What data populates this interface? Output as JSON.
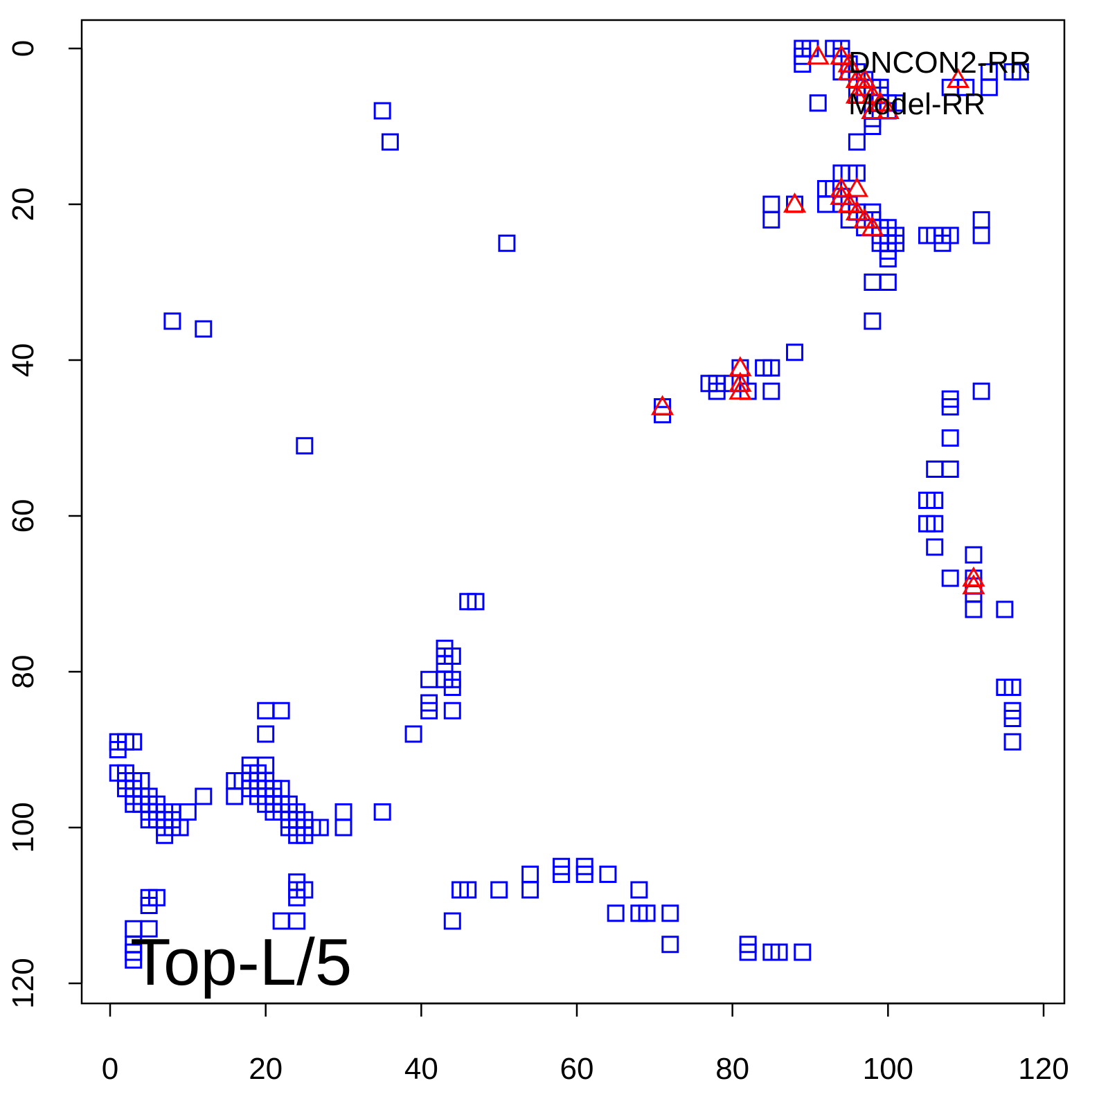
{
  "chart_data": {
    "type": "scatter",
    "title": "",
    "xlabel": "",
    "ylabel": "",
    "xlim": [
      0,
      120
    ],
    "ylim": [
      120,
      0
    ],
    "y_reversed": true,
    "grid": false,
    "x_ticks": [
      "0",
      "20",
      "40",
      "60",
      "80",
      "100",
      "120"
    ],
    "y_ticks": [
      "0",
      "20",
      "40",
      "60",
      "80",
      "100",
      "120"
    ],
    "annotation": "Top-L/5",
    "legend": {
      "placement": "top-right",
      "entries": [
        "DNCON2-RR",
        "Model-RR"
      ]
    },
    "colors": {
      "squares": "#0000FF",
      "triangles": "#FF0000"
    },
    "series": [
      {
        "marker": "square",
        "color": "#0000FF",
        "points": [
          [
            89,
            0
          ],
          [
            90,
            0
          ],
          [
            89,
            1
          ],
          [
            89,
            2
          ],
          [
            93,
            0
          ],
          [
            94,
            0
          ],
          [
            94,
            1
          ],
          [
            95,
            2
          ],
          [
            95,
            3
          ],
          [
            94,
            3
          ],
          [
            96,
            3
          ],
          [
            96,
            4
          ],
          [
            97,
            4
          ],
          [
            97,
            5
          ],
          [
            98,
            5
          ],
          [
            98,
            6
          ],
          [
            99,
            5
          ],
          [
            99,
            6
          ],
          [
            96,
            6
          ],
          [
            97,
            6
          ],
          [
            100,
            7
          ],
          [
            101,
            7
          ],
          [
            100,
            8
          ],
          [
            99,
            8
          ],
          [
            98,
            9
          ],
          [
            98,
            8
          ],
          [
            91,
            7
          ],
          [
            96,
            12
          ],
          [
            98,
            10
          ],
          [
            110,
            5
          ],
          [
            108,
            5
          ],
          [
            113,
            3
          ],
          [
            113,
            5
          ],
          [
            116,
            3
          ],
          [
            117,
            3
          ],
          [
            35,
            8
          ],
          [
            36,
            12
          ],
          [
            51,
            25
          ],
          [
            8,
            35
          ],
          [
            12,
            36
          ],
          [
            25,
            51
          ],
          [
            92,
            18
          ],
          [
            93,
            18
          ],
          [
            94,
            16
          ],
          [
            95,
            16
          ],
          [
            96,
            16
          ],
          [
            92,
            20
          ],
          [
            94,
            19
          ],
          [
            94,
            20
          ],
          [
            95,
            20
          ],
          [
            96,
            21
          ],
          [
            95,
            22
          ],
          [
            97,
            22
          ],
          [
            97,
            23
          ],
          [
            98,
            21
          ],
          [
            98,
            22
          ],
          [
            99,
            23
          ],
          [
            99,
            24
          ],
          [
            100,
            23
          ],
          [
            100,
            24
          ],
          [
            101,
            24
          ],
          [
            99,
            25
          ],
          [
            100,
            25
          ],
          [
            101,
            25
          ],
          [
            100,
            26
          ],
          [
            100,
            27
          ],
          [
            98,
            30
          ],
          [
            100,
            30
          ],
          [
            98,
            35
          ],
          [
            88,
            20
          ],
          [
            85,
            20
          ],
          [
            85,
            22
          ],
          [
            105,
            24
          ],
          [
            106,
            24
          ],
          [
            107,
            24
          ],
          [
            108,
            24
          ],
          [
            107,
            25
          ],
          [
            112,
            22
          ],
          [
            112,
            24
          ],
          [
            88,
            39
          ],
          [
            84,
            41
          ],
          [
            85,
            41
          ],
          [
            81,
            41
          ],
          [
            81,
            43
          ],
          [
            77,
            43
          ],
          [
            78,
            43
          ],
          [
            78,
            44
          ],
          [
            80,
            43
          ],
          [
            82,
            44
          ],
          [
            85,
            44
          ],
          [
            71,
            46
          ],
          [
            71,
            47
          ],
          [
            112,
            44
          ],
          [
            108,
            45
          ],
          [
            108,
            46
          ],
          [
            108,
            50
          ],
          [
            106,
            54
          ],
          [
            108,
            54
          ],
          [
            105,
            58
          ],
          [
            106,
            58
          ],
          [
            105,
            61
          ],
          [
            106,
            61
          ],
          [
            106,
            64
          ],
          [
            108,
            68
          ],
          [
            111,
            65
          ],
          [
            111,
            68
          ],
          [
            111,
            69
          ],
          [
            111,
            70
          ],
          [
            111,
            72
          ],
          [
            115,
            72
          ],
          [
            115,
            82
          ],
          [
            116,
            82
          ],
          [
            116,
            85
          ],
          [
            116,
            86
          ],
          [
            116,
            89
          ],
          [
            46,
            71
          ],
          [
            47,
            71
          ],
          [
            43,
            77
          ],
          [
            43,
            78
          ],
          [
            43,
            79
          ],
          [
            44,
            78
          ],
          [
            43,
            81
          ],
          [
            44,
            81
          ],
          [
            44,
            82
          ],
          [
            41,
            81
          ],
          [
            41,
            84
          ],
          [
            41,
            85
          ],
          [
            44,
            85
          ],
          [
            39,
            88
          ],
          [
            1,
            89
          ],
          [
            2,
            89
          ],
          [
            3,
            89
          ],
          [
            1,
            90
          ],
          [
            1,
            93
          ],
          [
            2,
            93
          ],
          [
            2,
            94
          ],
          [
            3,
            94
          ],
          [
            2,
            95
          ],
          [
            3,
            95
          ],
          [
            4,
            94
          ],
          [
            3,
            96
          ],
          [
            4,
            96
          ],
          [
            5,
            96
          ],
          [
            3,
            97
          ],
          [
            4,
            97
          ],
          [
            5,
            97
          ],
          [
            6,
            97
          ],
          [
            5,
            98
          ],
          [
            6,
            98
          ],
          [
            7,
            98
          ],
          [
            5,
            99
          ],
          [
            6,
            99
          ],
          [
            7,
            99
          ],
          [
            8,
            98
          ],
          [
            8,
            99
          ],
          [
            7,
            100
          ],
          [
            8,
            100
          ],
          [
            9,
            100
          ],
          [
            10,
            98
          ],
          [
            7,
            101
          ],
          [
            12,
            96
          ],
          [
            16,
            94
          ],
          [
            17,
            94
          ],
          [
            16,
            96
          ],
          [
            18,
            92
          ],
          [
            18,
            93
          ],
          [
            19,
            93
          ],
          [
            20,
            92
          ],
          [
            18,
            94
          ],
          [
            19,
            94
          ],
          [
            20,
            94
          ],
          [
            18,
            95
          ],
          [
            19,
            95
          ],
          [
            20,
            95
          ],
          [
            21,
            95
          ],
          [
            19,
            96
          ],
          [
            20,
            96
          ],
          [
            21,
            96
          ],
          [
            22,
            95
          ],
          [
            20,
            97
          ],
          [
            21,
            97
          ],
          [
            22,
            97
          ],
          [
            23,
            97
          ],
          [
            21,
            98
          ],
          [
            22,
            98
          ],
          [
            23,
            98
          ],
          [
            24,
            98
          ],
          [
            23,
            99
          ],
          [
            24,
            99
          ],
          [
            25,
            99
          ],
          [
            23,
            100
          ],
          [
            24,
            100
          ],
          [
            25,
            100
          ],
          [
            26,
            100
          ],
          [
            27,
            100
          ],
          [
            24,
            101
          ],
          [
            25,
            101
          ],
          [
            30,
            98
          ],
          [
            30,
            100
          ],
          [
            35,
            98
          ],
          [
            20,
            85
          ],
          [
            22,
            85
          ],
          [
            20,
            88
          ],
          [
            5,
            109
          ],
          [
            6,
            109
          ],
          [
            5,
            110
          ],
          [
            3,
            113
          ],
          [
            5,
            113
          ],
          [
            3,
            115
          ],
          [
            3,
            116
          ],
          [
            3,
            117
          ],
          [
            22,
            112
          ],
          [
            24,
            112
          ],
          [
            24,
            107
          ],
          [
            24,
            108
          ],
          [
            25,
            108
          ],
          [
            24,
            109
          ],
          [
            44,
            112
          ],
          [
            45,
            108
          ],
          [
            46,
            108
          ],
          [
            50,
            108
          ],
          [
            54,
            106
          ],
          [
            54,
            108
          ],
          [
            58,
            105
          ],
          [
            58,
            106
          ],
          [
            61,
            105
          ],
          [
            61,
            106
          ],
          [
            64,
            106
          ],
          [
            65,
            111
          ],
          [
            68,
            108
          ],
          [
            68,
            111
          ],
          [
            69,
            111
          ],
          [
            72,
            111
          ],
          [
            72,
            115
          ],
          [
            82,
            115
          ],
          [
            82,
            116
          ],
          [
            85,
            116
          ],
          [
            86,
            116
          ],
          [
            89,
            116
          ]
        ]
      },
      {
        "marker": "triangle",
        "color": "#FF0000",
        "points": [
          [
            91,
            1
          ],
          [
            94,
            1
          ],
          [
            95,
            2
          ],
          [
            95,
            3
          ],
          [
            96,
            4
          ],
          [
            97,
            4
          ],
          [
            97,
            5
          ],
          [
            98,
            6
          ],
          [
            96,
            6
          ],
          [
            99,
            7
          ],
          [
            100,
            8
          ],
          [
            98,
            8
          ],
          [
            109,
            4
          ],
          [
            88,
            20
          ],
          [
            94,
            18
          ],
          [
            94,
            19
          ],
          [
            96,
            18
          ],
          [
            95,
            20
          ],
          [
            96,
            21
          ],
          [
            97,
            22
          ],
          [
            98,
            23
          ],
          [
            81,
            41
          ],
          [
            81,
            43
          ],
          [
            81,
            44
          ],
          [
            71,
            46
          ],
          [
            111,
            68
          ],
          [
            111,
            69
          ]
        ]
      }
    ]
  }
}
